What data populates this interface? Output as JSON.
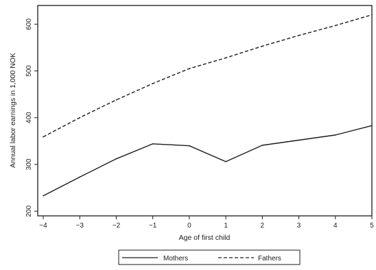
{
  "chart_data": {
    "type": "line",
    "xlabel": "Age of first child",
    "ylabel": "Annual labor earnings in 1,000 NOK",
    "x": [
      -4,
      -3,
      -2,
      -1,
      0,
      1,
      2,
      3,
      4,
      5
    ],
    "xticks": [
      "−4",
      "−3",
      "−2",
      "−1",
      "0",
      "1",
      "2",
      "3",
      "4",
      "5"
    ],
    "yticks": [
      "200",
      "300",
      "400",
      "500",
      "600"
    ],
    "xlim": [
      -4,
      5
    ],
    "ylim": [
      190,
      640
    ],
    "grid": false,
    "legend_position": "bottom",
    "series": [
      {
        "name": "Mothers",
        "style": "solid",
        "color": "#1a1a1a",
        "values": [
          233,
          273,
          312,
          344,
          340,
          306,
          341,
          352,
          363,
          383
        ]
      },
      {
        "name": "Fathers",
        "style": "dashed",
        "color": "#1a1a1a",
        "values": [
          359,
          400,
          438,
          473,
          505,
          528,
          553,
          576,
          597,
          620
        ]
      }
    ]
  }
}
